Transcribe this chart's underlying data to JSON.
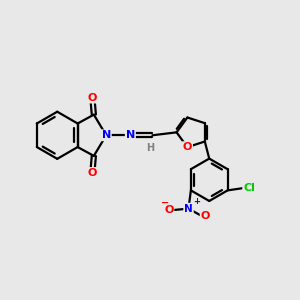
{
  "bg_color": "#e8e8e8",
  "atom_colors": {
    "C": "#000000",
    "N": "#0000ff",
    "O": "#ff0000",
    "Cl": "#00cc00",
    "H": "#808080"
  },
  "bond_color": "#000000",
  "bond_width": 1.6,
  "figsize": [
    3.0,
    3.0
  ],
  "dpi": 100,
  "xlim": [
    0,
    10
  ],
  "ylim": [
    0,
    10
  ]
}
